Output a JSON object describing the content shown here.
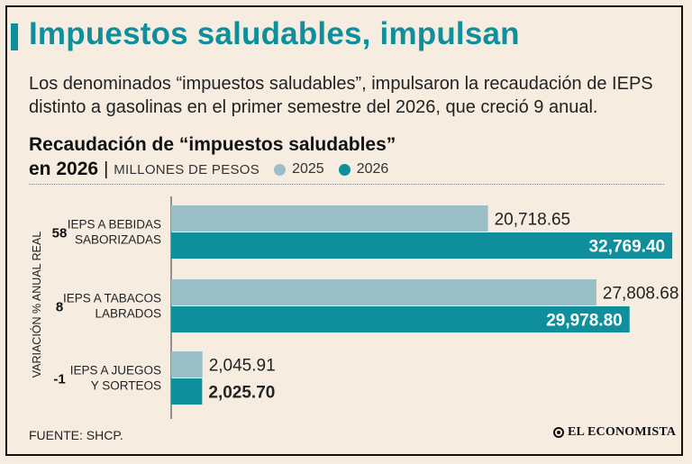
{
  "header": {
    "title": "Impuestos saludables, impulsan",
    "subtitle": "Los denominados “impuestos saludables”, impulsaron la recaudación de IEPS distinto a gasolinas en el primer semestre del 2026, que creció 9 anual."
  },
  "chart_header": {
    "title_line1": "Recaudación de “impuestos saludables”",
    "title_line2": "en 2026",
    "separator": "|",
    "unit": "MILLONES DE PESOS"
  },
  "chart_data": {
    "type": "bar",
    "orientation": "horizontal",
    "categories": [
      [
        "IEPS A BEBIDAS",
        "SABORIZADAS"
      ],
      [
        "IEPS A TABACOS",
        "LABRADOS"
      ],
      [
        "IEPS A JUEGOS",
        "Y SORTEOS"
      ]
    ],
    "series": [
      {
        "name": "2025",
        "color": "#9bbfc6",
        "values": [
          20718.65,
          27808.68,
          2045.91
        ],
        "labels": [
          "20,718.65",
          "27,808.68",
          "2,045.91"
        ]
      },
      {
        "name": "2026",
        "color": "#0f8f9c",
        "values": [
          32769.4,
          29978.8,
          2025.7
        ],
        "labels": [
          "32,769.40",
          "29,978.80",
          "2,025.70"
        ]
      }
    ],
    "variation_axis_label": "VARIACIÓN % ANUAL REAL",
    "variation": [
      "58",
      "8",
      "-1"
    ],
    "xlim": [
      0,
      33000
    ],
    "grid": false,
    "legend": "top"
  },
  "footer": {
    "source": "FUENTE: SHCP.",
    "brand": "EL ECONOMISTA"
  },
  "colors": {
    "accent": "#0f8f9c",
    "light": "#9bbfc6",
    "background": "#f6ede0"
  }
}
